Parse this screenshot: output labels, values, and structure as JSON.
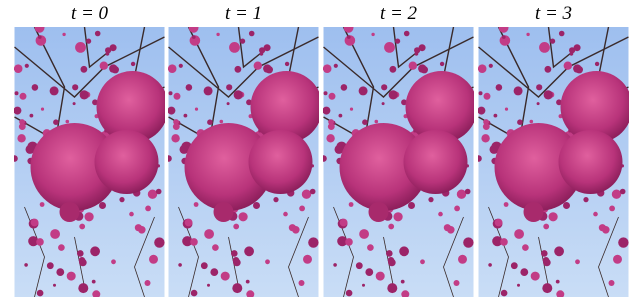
{
  "panels": [
    {
      "label": "t = 0"
    },
    {
      "label": "t = 1"
    },
    {
      "label": "t = 2"
    },
    {
      "label": "t = 3"
    }
  ]
}
